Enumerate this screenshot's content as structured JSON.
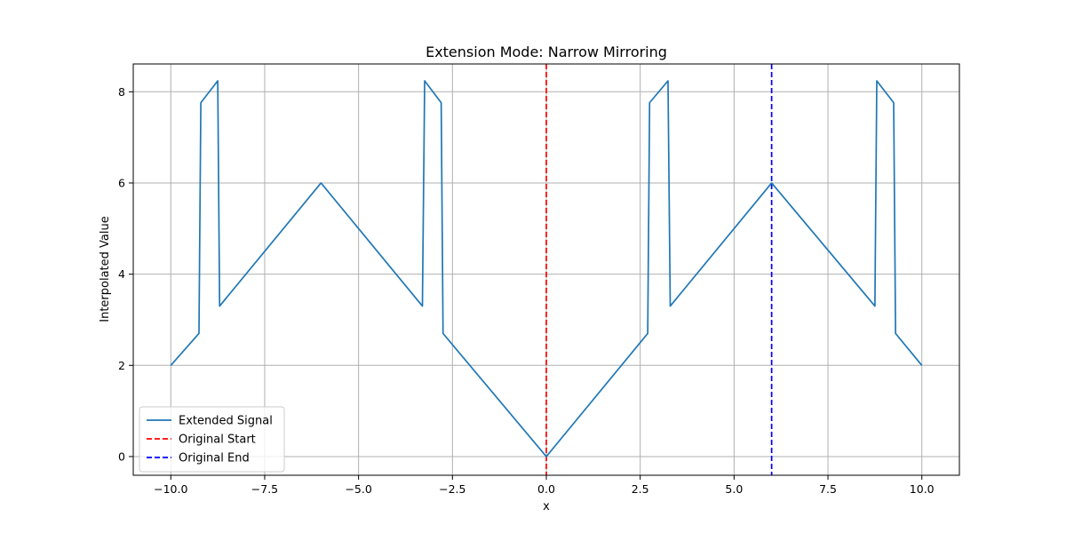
{
  "chart_data": {
    "type": "line",
    "title": "Extension Mode: Narrow Mirroring",
    "xlabel": "x",
    "ylabel": "Interpolated Value",
    "xlim": [
      -11.0,
      11.0
    ],
    "ylim": [
      -0.41,
      8.61
    ],
    "xticks": [
      -10.0,
      -7.5,
      -5.0,
      -2.5,
      0.0,
      2.5,
      5.0,
      7.5,
      10.0
    ],
    "xtick_labels": [
      "−10.0",
      "−7.5",
      "−5.0",
      "−2.5",
      "0.0",
      "2.5",
      "5.0",
      "7.5",
      "10.0"
    ],
    "yticks": [
      0,
      2,
      4,
      6,
      8
    ],
    "ytick_labels": [
      "0",
      "2",
      "4",
      "6",
      "8"
    ],
    "grid": true,
    "legend_position": "lower-left",
    "series": [
      {
        "name": "Extended Signal",
        "color": "#1f77b4",
        "style": "solid",
        "points": [
          [
            -10.0,
            2.0
          ],
          [
            -9.25,
            2.7
          ],
          [
            -9.2,
            7.76
          ],
          [
            -8.75,
            8.24
          ],
          [
            -8.7,
            3.3
          ],
          [
            -6.0,
            6.0
          ],
          [
            -3.3,
            3.3
          ],
          [
            -3.24,
            8.24
          ],
          [
            -2.8,
            7.76
          ],
          [
            -2.75,
            2.7
          ],
          [
            0.0,
            0.0
          ],
          [
            2.7,
            2.7
          ],
          [
            2.75,
            7.76
          ],
          [
            3.24,
            8.24
          ],
          [
            3.3,
            3.3
          ],
          [
            6.0,
            6.0
          ],
          [
            8.75,
            3.3
          ],
          [
            8.8,
            8.24
          ],
          [
            9.25,
            7.76
          ],
          [
            9.3,
            2.7
          ],
          [
            10.0,
            2.0
          ]
        ]
      }
    ],
    "reference_lines": [
      {
        "name": "Original Start",
        "x": 0.0,
        "color": "#ff0000",
        "style": "dashed"
      },
      {
        "name": "Original End",
        "x": 6.0,
        "color": "#0000ff",
        "style": "dashed"
      }
    ]
  }
}
